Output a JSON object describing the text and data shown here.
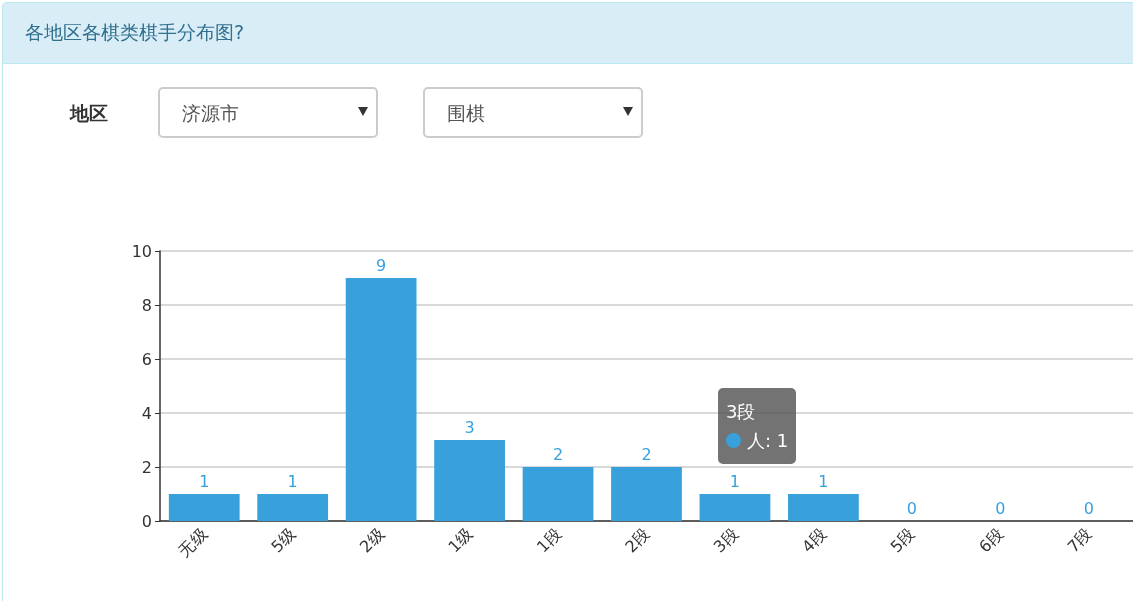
{
  "chart_data": {
    "type": "bar",
    "title": "各地区各棋类棋手分布图?",
    "categories": [
      "无级",
      "5级",
      "2级",
      "1级",
      "1段",
      "2段",
      "3段",
      "4段",
      "5段",
      "6段",
      "7段"
    ],
    "series": [
      {
        "color": "#38a1db",
        "values": [
          1,
          1,
          9,
          3,
          2,
          2,
          1,
          1,
          0,
          0,
          0
        ]
      }
    ],
    "ylim": [
      0,
      10
    ],
    "yticks": [
      0,
      2,
      4,
      6,
      8,
      10
    ],
    "grid": "y",
    "data_labels": true,
    "annotations": [
      "地区",
      "济源市",
      "围棋",
      "3段",
      {
        "text": "人: 1",
        "x": "3段",
        "y": 1
      }
    ]
  }
}
